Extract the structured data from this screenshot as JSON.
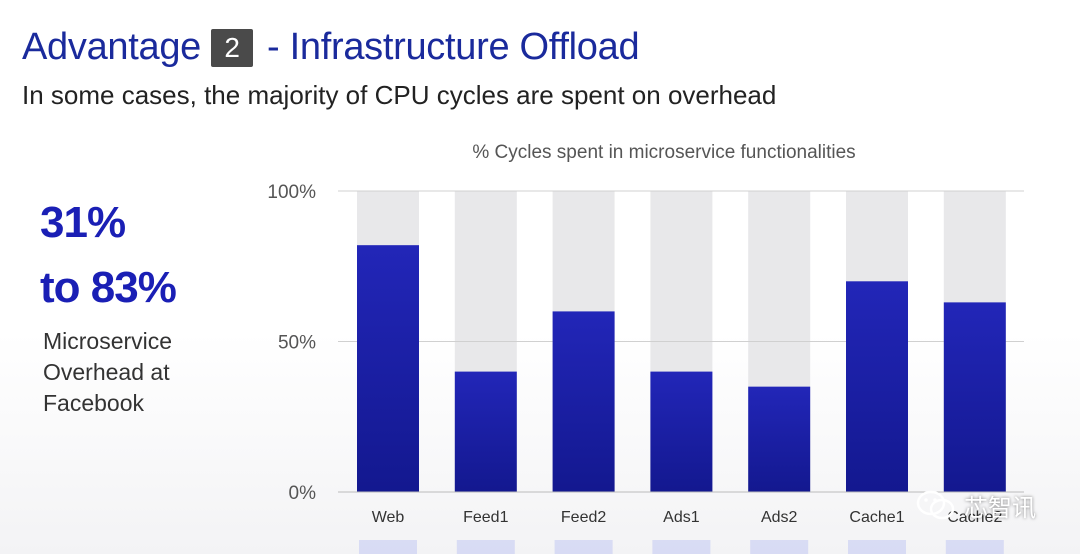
{
  "header": {
    "title_prefix": "Advantage",
    "badge": "2",
    "title_suffix": "- Infrastructure Offload",
    "subtitle": "In some cases, the majority of CPU cycles are spent on overhead"
  },
  "callout": {
    "stat_line1": "31%",
    "stat_line2": "to 83%",
    "desc_line1": "Microservice",
    "desc_line2": "Overhead at",
    "desc_line3": "Facebook"
  },
  "watermark": {
    "text": "芯智讯",
    "icon": "wechat-icon"
  },
  "colors": {
    "accent": "#1a1fb5",
    "title": "#1a2a9c",
    "bar_bg": "#e8e8ea"
  },
  "chart_data": {
    "type": "bar",
    "title": "% Cycles spent in microservice functionalities",
    "categories": [
      "Web",
      "Feed1",
      "Feed2",
      "Ads1",
      "Ads2",
      "Cache1",
      "Cache2"
    ],
    "values": [
      82,
      40,
      60,
      40,
      35,
      70,
      63
    ],
    "ylim": [
      0,
      100
    ],
    "yticks": [
      0,
      50,
      100
    ],
    "ytick_labels": [
      "0%",
      "50%",
      "100%"
    ],
    "xlabel": "",
    "ylabel": ""
  }
}
